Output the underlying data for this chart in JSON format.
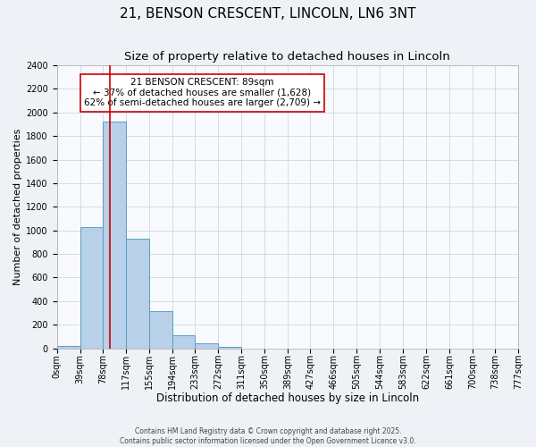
{
  "title": "21, BENSON CRESCENT, LINCOLN, LN6 3NT",
  "subtitle": "Size of property relative to detached houses in Lincoln",
  "xlabel": "Distribution of detached houses by size in Lincoln",
  "ylabel": "Number of detached properties",
  "bin_edges": [
    0,
    39,
    78,
    117,
    155,
    194,
    233,
    272,
    311,
    350,
    389,
    427,
    466,
    505,
    544,
    583,
    622,
    661,
    700,
    738,
    777
  ],
  "bin_labels": [
    "0sqm",
    "39sqm",
    "78sqm",
    "117sqm",
    "155sqm",
    "194sqm",
    "233sqm",
    "272sqm",
    "311sqm",
    "350sqm",
    "389sqm",
    "427sqm",
    "466sqm",
    "505sqm",
    "544sqm",
    "583sqm",
    "622sqm",
    "661sqm",
    "700sqm",
    "738sqm",
    "777sqm"
  ],
  "bar_heights": [
    20,
    1030,
    1920,
    930,
    315,
    110,
    40,
    15,
    0,
    0,
    0,
    0,
    0,
    0,
    0,
    0,
    0,
    0,
    0,
    0
  ],
  "bar_color": "#b8d0e8",
  "bar_edge_color": "#5a9ec9",
  "vertical_line_x": 89,
  "vertical_line_color": "#cc0000",
  "annotation_line1": "21 BENSON CRESCENT: 89sqm",
  "annotation_line2": "← 37% of detached houses are smaller (1,628)",
  "annotation_line3": "62% of semi-detached houses are larger (2,709) →",
  "ylim": [
    0,
    2400
  ],
  "yticks": [
    0,
    200,
    400,
    600,
    800,
    1000,
    1200,
    1400,
    1600,
    1800,
    2000,
    2200,
    2400
  ],
  "background_color": "#eef2f7",
  "plot_bg_color": "#f8fafd",
  "grid_color": "#c8d0dc",
  "footer_line1": "Contains HM Land Registry data © Crown copyright and database right 2025.",
  "footer_line2": "Contains public sector information licensed under the Open Government Licence v3.0.",
  "title_fontsize": 11,
  "subtitle_fontsize": 9.5,
  "xlabel_fontsize": 8.5,
  "ylabel_fontsize": 8,
  "tick_fontsize": 7,
  "annotation_fontsize": 7.5,
  "footer_fontsize": 5.5
}
